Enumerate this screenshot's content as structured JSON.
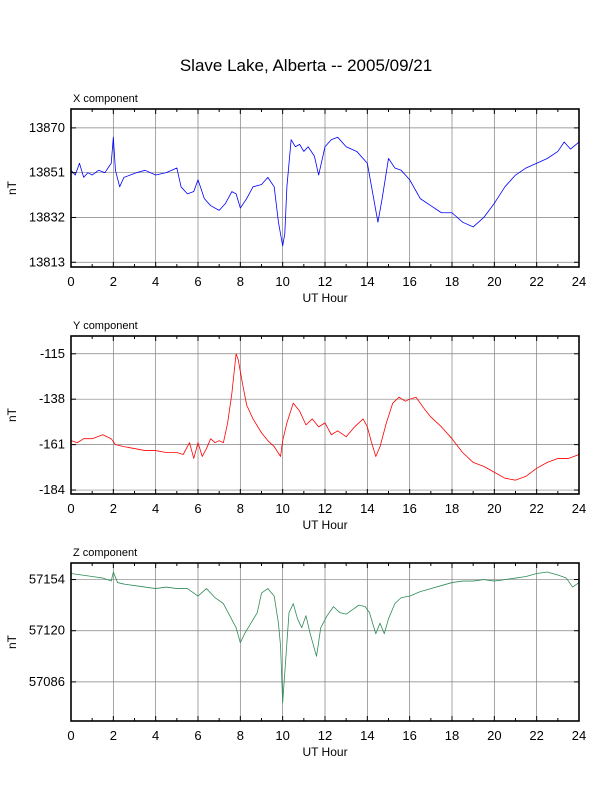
{
  "title": "Slave Lake, Alberta -- 2005/09/21",
  "colors": {
    "X component": "#0000ff",
    "Y component": "#ff0000",
    "Z component": "#2e8b57",
    "grid": "#808080"
  },
  "chart_data": [
    {
      "type": "line",
      "title": "X component",
      "xlabel": "UT Hour",
      "ylabel": "nT",
      "xlim": [
        0,
        24
      ],
      "ylim": [
        13811,
        13878
      ],
      "xticks": [
        0,
        2,
        4,
        6,
        8,
        10,
        12,
        14,
        16,
        18,
        20,
        22,
        24
      ],
      "yticks": [
        13813,
        13832,
        13851,
        13870
      ],
      "grid": true,
      "series": [
        {
          "color": "#0000ff",
          "x": [
            0,
            0.2,
            0.4,
            0.6,
            0.8,
            1.0,
            1.3,
            1.6,
            1.9,
            2.0,
            2.1,
            2.3,
            2.5,
            2.8,
            3.1,
            3.5,
            4.0,
            4.5,
            5.0,
            5.2,
            5.5,
            5.8,
            6.0,
            6.3,
            6.6,
            7.0,
            7.3,
            7.6,
            7.8,
            8.0,
            8.3,
            8.6,
            9.0,
            9.3,
            9.6,
            9.8,
            10.0,
            10.1,
            10.2,
            10.4,
            10.6,
            10.8,
            11.0,
            11.2,
            11.5,
            11.7,
            12.0,
            12.3,
            12.6,
            13.0,
            13.5,
            14.0,
            14.2,
            14.4,
            14.5,
            14.7,
            15.0,
            15.3,
            15.6,
            16.0,
            16.5,
            17.0,
            17.5,
            18.0,
            18.5,
            19.0,
            19.5,
            20.0,
            20.5,
            21.0,
            21.5,
            22.0,
            22.5,
            23.0,
            23.3,
            23.6,
            24.0
          ],
          "y": [
            13852,
            13850,
            13855,
            13849,
            13851,
            13850,
            13852,
            13851,
            13855,
            13866,
            13852,
            13845,
            13849,
            13850,
            13851,
            13852,
            13850,
            13851,
            13853,
            13845,
            13842,
            13843,
            13848,
            13840,
            13837,
            13835,
            13838,
            13843,
            13842,
            13836,
            13840,
            13845,
            13846,
            13849,
            13845,
            13830,
            13820,
            13825,
            13845,
            13865,
            13862,
            13863,
            13860,
            13862,
            13858,
            13850,
            13862,
            13865,
            13866,
            13862,
            13860,
            13855,
            13845,
            13835,
            13830,
            13840,
            13857,
            13853,
            13852,
            13848,
            13840,
            13837,
            13834,
            13834,
            13830,
            13828,
            13832,
            13838,
            13845,
            13850,
            13853,
            13855,
            13857,
            13860,
            13864,
            13861,
            13864
          ]
        }
      ]
    },
    {
      "type": "line",
      "title": "Y component",
      "xlabel": "UT Hour",
      "ylabel": "nT",
      "xlim": [
        0,
        24
      ],
      "ylim": [
        -186,
        -106
      ],
      "xticks": [
        0,
        2,
        4,
        6,
        8,
        10,
        12,
        14,
        16,
        18,
        20,
        22,
        24
      ],
      "yticks": [
        -115,
        -138,
        -161,
        -184
      ],
      "grid": true,
      "series": [
        {
          "color": "#ff0000",
          "x": [
            0,
            0.3,
            0.6,
            1.0,
            1.5,
            1.9,
            2.1,
            2.5,
            3.0,
            3.5,
            4.0,
            4.5,
            5.0,
            5.3,
            5.6,
            5.8,
            6.0,
            6.2,
            6.4,
            6.6,
            6.8,
            7.0,
            7.2,
            7.4,
            7.6,
            7.8,
            7.9,
            8.1,
            8.3,
            8.6,
            9.0,
            9.3,
            9.6,
            9.9,
            10.0,
            10.2,
            10.5,
            10.8,
            11.1,
            11.4,
            11.7,
            12.0,
            12.3,
            12.6,
            13.0,
            13.4,
            13.8,
            14.0,
            14.2,
            14.4,
            14.6,
            14.9,
            15.2,
            15.5,
            15.8,
            16.0,
            16.3,
            16.7,
            17.0,
            17.5,
            18.0,
            18.5,
            19.0,
            19.5,
            20.0,
            20.5,
            21.0,
            21.5,
            22.0,
            22.5,
            23.0,
            23.5,
            24.0
          ],
          "y": [
            -159,
            -160,
            -158,
            -158,
            -156,
            -158,
            -161,
            -162,
            -163,
            -164,
            -164,
            -165,
            -165,
            -166,
            -160,
            -168,
            -160,
            -167,
            -163,
            -158,
            -160,
            -159,
            -160,
            -150,
            -135,
            -115,
            -118,
            -130,
            -141,
            -148,
            -155,
            -159,
            -162,
            -167,
            -159,
            -150,
            -140,
            -144,
            -151,
            -148,
            -152,
            -150,
            -156,
            -154,
            -157,
            -152,
            -148,
            -152,
            -160,
            -167,
            -162,
            -150,
            -140,
            -137,
            -139,
            -138,
            -137,
            -143,
            -147,
            -152,
            -158,
            -165,
            -170,
            -172,
            -175,
            -178,
            -179,
            -177,
            -173,
            -170,
            -168,
            -168,
            -166
          ]
        }
      ]
    },
    {
      "type": "line",
      "title": "Z component",
      "xlabel": "UT Hour",
      "ylabel": "nT",
      "xlim": [
        0,
        24
      ],
      "ylim": [
        57060,
        57165
      ],
      "xticks": [
        0,
        2,
        4,
        6,
        8,
        10,
        12,
        14,
        16,
        18,
        20,
        22,
        24
      ],
      "yticks": [
        57086,
        57120,
        57154
      ],
      "grid": true,
      "series": [
        {
          "color": "#2e8b57",
          "x": [
            0,
            0.5,
            1.0,
            1.5,
            1.9,
            2.0,
            2.2,
            2.5,
            3.0,
            3.5,
            4.0,
            4.5,
            5.0,
            5.5,
            6.0,
            6.4,
            6.8,
            7.2,
            7.5,
            7.8,
            8.0,
            8.2,
            8.5,
            8.8,
            9.0,
            9.3,
            9.6,
            9.8,
            9.9,
            10.0,
            10.1,
            10.3,
            10.5,
            10.7,
            10.9,
            11.1,
            11.3,
            11.6,
            11.8,
            12.1,
            12.4,
            12.7,
            13.0,
            13.3,
            13.6,
            13.9,
            14.1,
            14.4,
            14.6,
            14.8,
            15.0,
            15.3,
            15.6,
            16.0,
            16.5,
            17.0,
            17.5,
            18.0,
            18.5,
            19.0,
            19.5,
            20.0,
            20.5,
            21.0,
            21.5,
            22.0,
            22.5,
            23.0,
            23.4,
            23.7,
            24.0
          ],
          "y": [
            57158,
            57157,
            57156,
            57155,
            57153,
            57159,
            57152,
            57151,
            57150,
            57149,
            57148,
            57149,
            57148,
            57148,
            57143,
            57148,
            57142,
            57138,
            57130,
            57122,
            57112,
            57118,
            57125,
            57132,
            57145,
            57148,
            57143,
            57125,
            57110,
            57072,
            57092,
            57132,
            57138,
            57128,
            57122,
            57130,
            57118,
            57103,
            57122,
            57130,
            57136,
            57132,
            57131,
            57134,
            57137,
            57136,
            57132,
            57118,
            57125,
            57118,
            57128,
            57138,
            57142,
            57143,
            57146,
            57148,
            57150,
            57152,
            57153,
            57153,
            57154,
            57153,
            57154,
            57155,
            57156,
            57158,
            57159,
            57157,
            57155,
            57149,
            57152
          ]
        }
      ]
    }
  ]
}
